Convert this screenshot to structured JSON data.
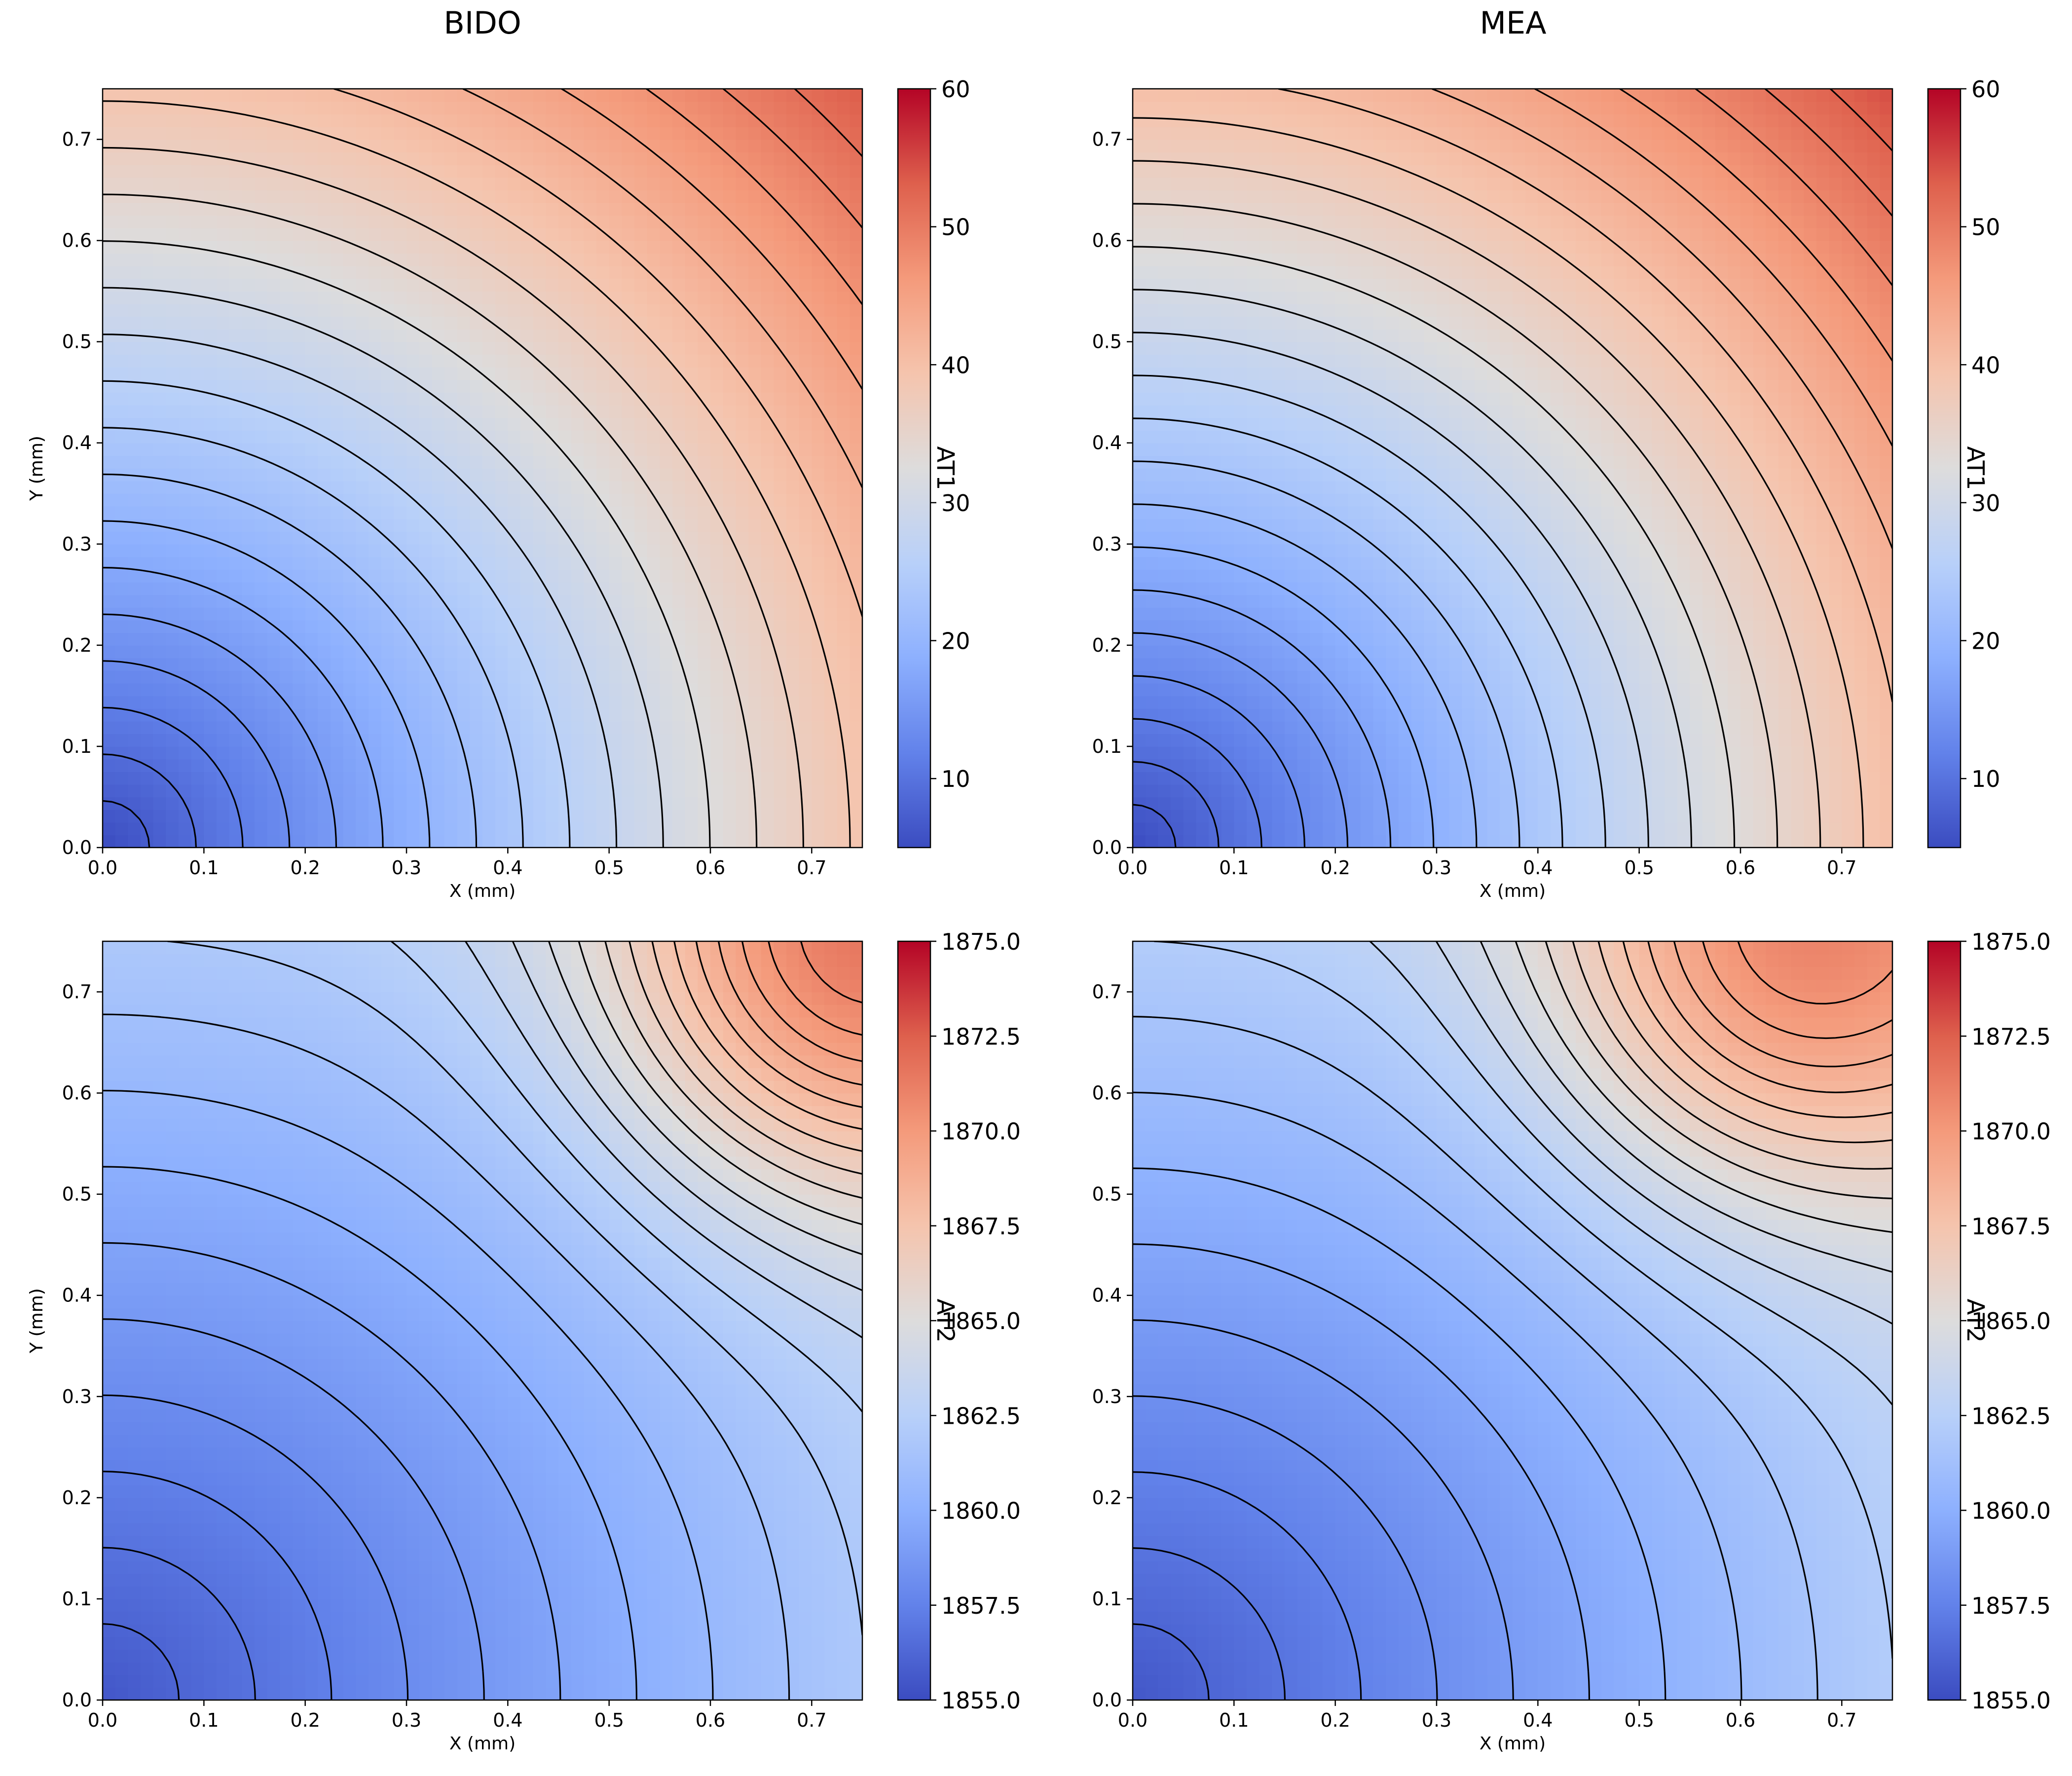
{
  "colors": {
    "colormap": "coolwarm",
    "low": "#3b4cc0",
    "mid": "#dddcdc",
    "high": "#b40426",
    "contour_line": "#000000"
  },
  "column_titles": [
    "BIDO",
    "MEA"
  ],
  "chart_data": [
    {
      "type": "heatmap",
      "variant": "filled-contour",
      "title": "BIDO",
      "xlabel": "X (mm)",
      "ylabel": "Y (mm)",
      "xlim": [
        0,
        0.75
      ],
      "ylim": [
        0,
        0.75
      ],
      "xticks": [
        "0.0",
        "0.1",
        "0.2",
        "0.3",
        "0.4",
        "0.5",
        "0.6",
        "0.7"
      ],
      "yticks": [
        "0.0",
        "0.1",
        "0.2",
        "0.3",
        "0.4",
        "0.5",
        "0.6",
        "0.7"
      ],
      "colorbar": {
        "label": "AT1",
        "range": [
          5,
          60
        ],
        "ticks": [
          "10",
          "20",
          "30",
          "40",
          "50",
          "60"
        ]
      },
      "field": {
        "min": 5,
        "max": 58,
        "hot_x": 0.75,
        "hot_y": 0.75,
        "axis_extent": 0.82,
        "corner": 58
      },
      "contour_levels": 22
    },
    {
      "type": "heatmap",
      "variant": "filled-contour",
      "title": "MEA",
      "xlabel": "X (mm)",
      "ylabel": "Y (mm)",
      "xlim": [
        0,
        0.75
      ],
      "ylim": [
        0,
        0.75
      ],
      "xticks": [
        "0.0",
        "0.1",
        "0.2",
        "0.3",
        "0.4",
        "0.5",
        "0.6",
        "0.7"
      ],
      "yticks": [
        "0.0",
        "0.1",
        "0.2",
        "0.3",
        "0.4",
        "0.5",
        "0.6",
        "0.7"
      ],
      "colorbar": {
        "label": "AT1",
        "range": [
          5,
          60
        ],
        "ticks": [
          "10",
          "20",
          "30",
          "40",
          "50",
          "60"
        ]
      },
      "field": {
        "min": 5,
        "max": 58,
        "hot_x": 0.75,
        "hot_y": 0.75,
        "axis_extent": 0.8,
        "corner": 58
      },
      "contour_levels": 24
    },
    {
      "type": "heatmap",
      "variant": "filled-contour",
      "title": "",
      "xlabel": "X (mm)",
      "ylabel": "Y (mm)",
      "xlim": [
        0,
        0.75
      ],
      "ylim": [
        0,
        0.75
      ],
      "xticks": [
        "0.0",
        "0.1",
        "0.2",
        "0.3",
        "0.4",
        "0.5",
        "0.6",
        "0.7"
      ],
      "yticks": [
        "0.0",
        "0.1",
        "0.2",
        "0.3",
        "0.4",
        "0.5",
        "0.6",
        "0.7"
      ],
      "colorbar": {
        "label": "AT2",
        "range": [
          1855,
          1875
        ],
        "ticks": [
          "1855.0",
          "1857.5",
          "1860.0",
          "1862.5",
          "1865.0",
          "1867.5",
          "1870.0",
          "1872.5",
          "1875.0"
        ]
      },
      "field": {
        "min": 1855.5,
        "max": 1874.5,
        "hot_x": 0.74,
        "hot_y": 0.74,
        "axis_extent": 1.0,
        "corner": 1867.5
      },
      "contour_levels": 24
    },
    {
      "type": "heatmap",
      "variant": "filled-contour",
      "title": "",
      "xlabel": "X (mm)",
      "ylabel": "Y (mm)",
      "xlim": [
        0,
        0.75
      ],
      "ylim": [
        0,
        0.75
      ],
      "xticks": [
        "0.0",
        "0.1",
        "0.2",
        "0.3",
        "0.4",
        "0.5",
        "0.6",
        "0.7"
      ],
      "yticks": [
        "0.0",
        "0.1",
        "0.2",
        "0.3",
        "0.4",
        "0.5",
        "0.6",
        "0.7"
      ],
      "colorbar": {
        "label": "AT2",
        "range": [
          1855,
          1875
        ],
        "ticks": [
          "1855.0",
          "1857.5",
          "1860.0",
          "1862.5",
          "1865.0",
          "1867.5",
          "1870.0",
          "1872.5",
          "1875.0"
        ]
      },
      "field": {
        "min": 1855.5,
        "max": 1874.0,
        "hot_x": 0.65,
        "hot_y": 0.74,
        "axis_extent": 0.95,
        "corner": 1867.5
      },
      "contour_levels": 22
    }
  ]
}
